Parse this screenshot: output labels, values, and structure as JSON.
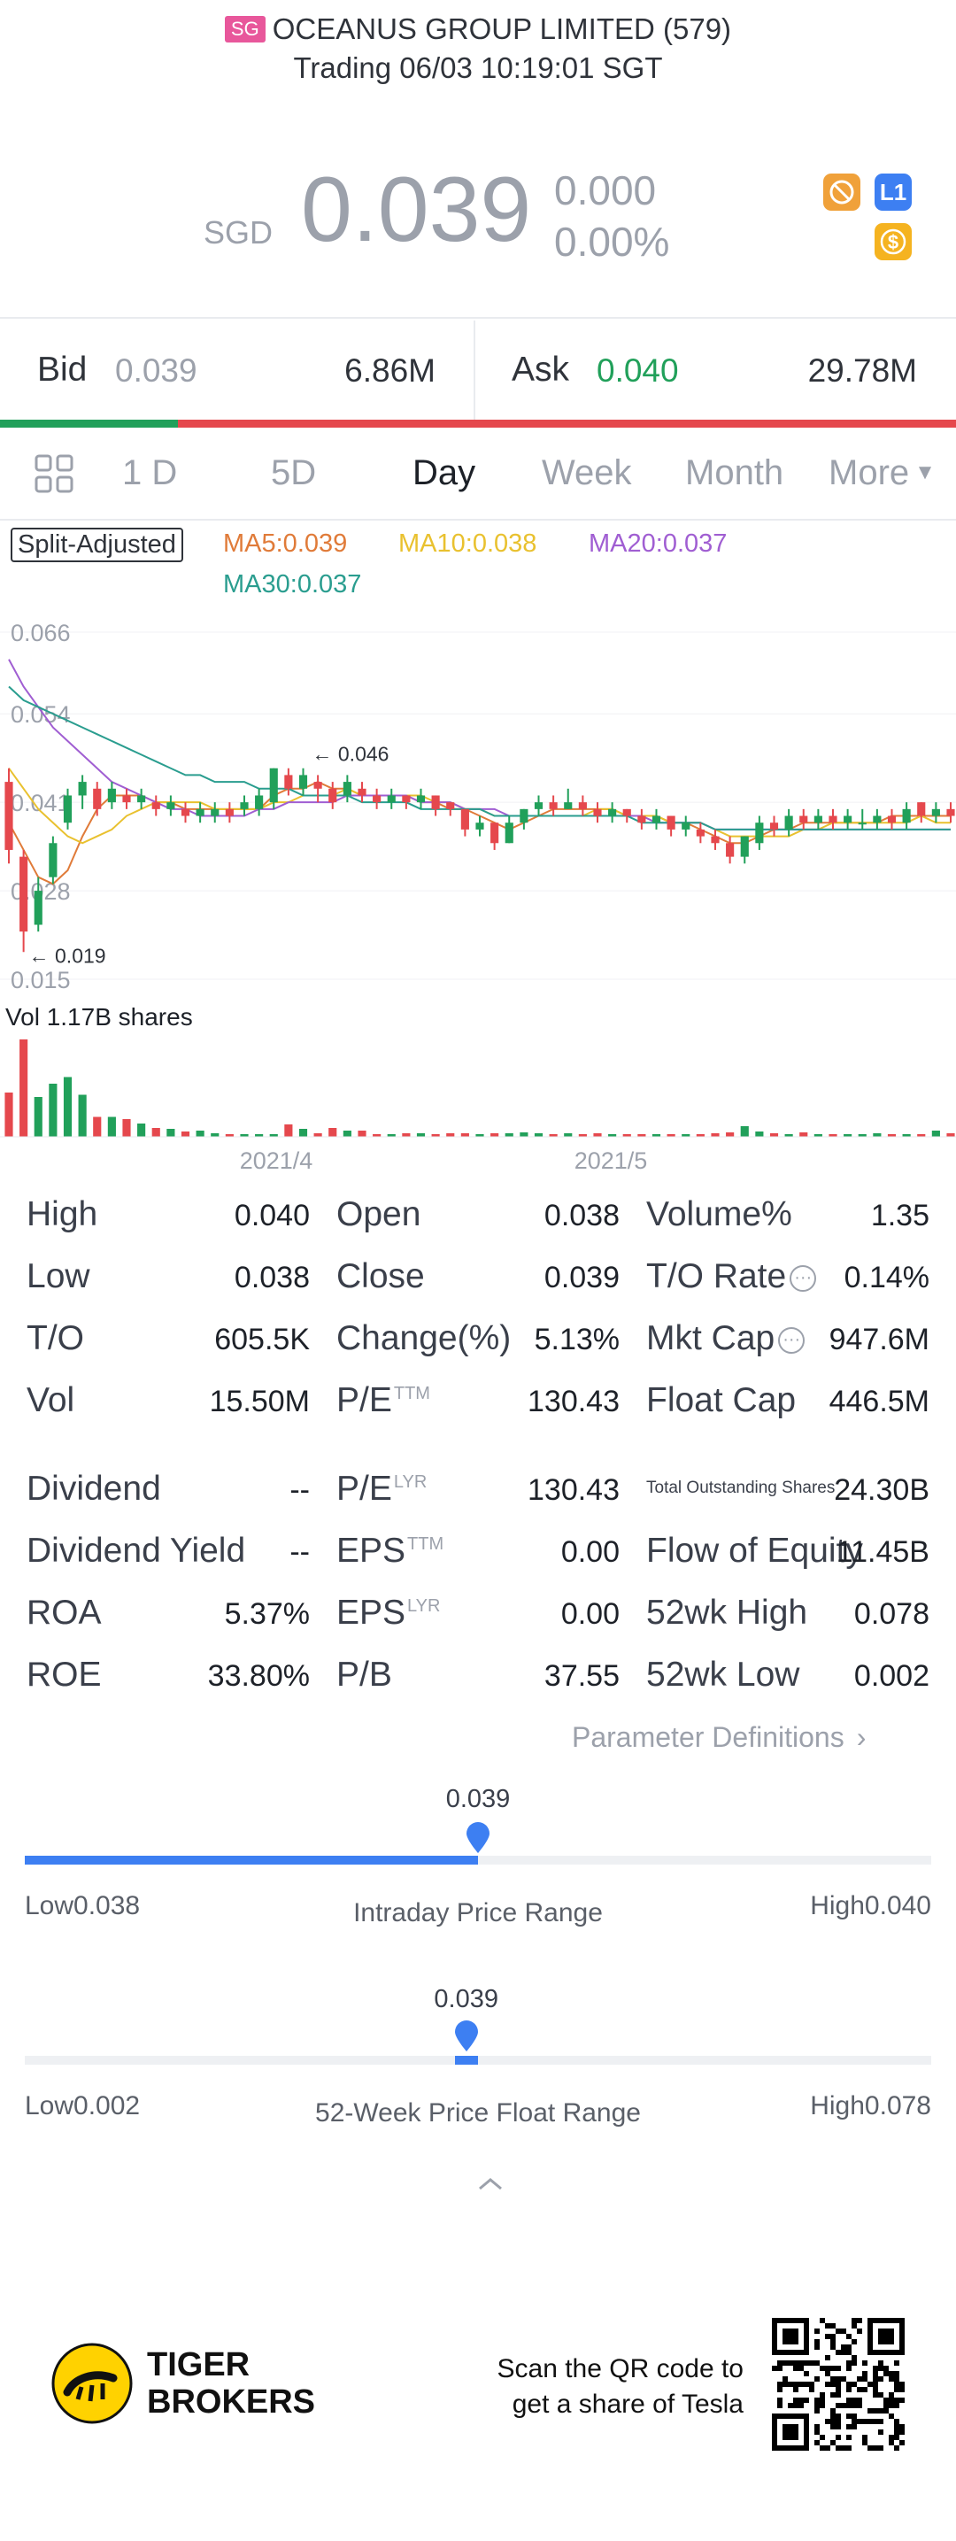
{
  "header": {
    "market_badge": "SG",
    "title": "OCEANUS GROUP LIMITED (579)",
    "status": "Trading 06/03 10:19:01 SGT"
  },
  "quote": {
    "currency": "SGD",
    "price": "0.039",
    "change": "0.000",
    "change_pct": "0.00%",
    "icons": [
      "no-shorting-icon",
      "level1-icon",
      "dollar-icon"
    ],
    "level_badge": "L1",
    "dollar_badge": "$"
  },
  "book": {
    "bid_label": "Bid",
    "bid_price": "0.039",
    "bid_size": "6.86M",
    "ask_label": "Ask",
    "ask_price": "0.040",
    "ask_size": "29.78M",
    "bid_share": 0.186
  },
  "tabs": {
    "items": [
      "1 D",
      "5D",
      "Day",
      "Week",
      "Month",
      "More"
    ],
    "active": "Day"
  },
  "indicators": {
    "split_label": "Split-Adjusted",
    "ma5": "MA5:0.039",
    "ma10": "MA10:0.038",
    "ma20": "MA20:0.037",
    "ma30": "MA30:0.037"
  },
  "colors": {
    "up": "#21a05a",
    "down": "#e5484d",
    "ma5": "#e07b39",
    "ma10": "#e9c12f",
    "ma20": "#a05ed2",
    "ma30": "#2a9d8f",
    "accent": "#3d7ff2",
    "brand": "#ffd200"
  },
  "chart_data": {
    "type": "candlestick",
    "y_ticks": [
      "0.066",
      "0.054",
      "0.041",
      "0.028",
      "0.015"
    ],
    "ylim": [
      0.015,
      0.066
    ],
    "x_ticks": [
      "2021/4",
      "2021/5"
    ],
    "annotations": {
      "high": "0.046",
      "low": "0.019"
    },
    "volume_label": "Vol",
    "volume_value": "1.17B shares",
    "candles": [
      {
        "o": 0.044,
        "c": 0.034,
        "h": 0.046,
        "l": 0.032
      },
      {
        "o": 0.033,
        "c": 0.022,
        "h": 0.034,
        "l": 0.019
      },
      {
        "o": 0.023,
        "c": 0.028,
        "h": 0.03,
        "l": 0.022
      },
      {
        "o": 0.03,
        "c": 0.035,
        "h": 0.036,
        "l": 0.029
      },
      {
        "o": 0.038,
        "c": 0.042,
        "h": 0.043,
        "l": 0.037
      },
      {
        "o": 0.042,
        "c": 0.044,
        "h": 0.045,
        "l": 0.04
      },
      {
        "o": 0.043,
        "c": 0.04,
        "h": 0.044,
        "l": 0.039
      },
      {
        "o": 0.041,
        "c": 0.043,
        "h": 0.044,
        "l": 0.04
      },
      {
        "o": 0.042,
        "c": 0.041,
        "h": 0.043,
        "l": 0.04
      },
      {
        "o": 0.041,
        "c": 0.042,
        "h": 0.043,
        "l": 0.04
      },
      {
        "o": 0.041,
        "c": 0.04,
        "h": 0.042,
        "l": 0.039
      },
      {
        "o": 0.04,
        "c": 0.041,
        "h": 0.042,
        "l": 0.039
      },
      {
        "o": 0.04,
        "c": 0.039,
        "h": 0.041,
        "l": 0.038
      },
      {
        "o": 0.039,
        "c": 0.04,
        "h": 0.041,
        "l": 0.038
      },
      {
        "o": 0.039,
        "c": 0.04,
        "h": 0.041,
        "l": 0.038
      },
      {
        "o": 0.04,
        "c": 0.039,
        "h": 0.041,
        "l": 0.038
      },
      {
        "o": 0.04,
        "c": 0.041,
        "h": 0.042,
        "l": 0.039
      },
      {
        "o": 0.04,
        "c": 0.042,
        "h": 0.043,
        "l": 0.039
      },
      {
        "o": 0.041,
        "c": 0.046,
        "h": 0.046,
        "l": 0.04
      },
      {
        "o": 0.045,
        "c": 0.043,
        "h": 0.046,
        "l": 0.042
      },
      {
        "o": 0.043,
        "c": 0.045,
        "h": 0.046,
        "l": 0.042
      },
      {
        "o": 0.044,
        "c": 0.043,
        "h": 0.045,
        "l": 0.041
      },
      {
        "o": 0.043,
        "c": 0.041,
        "h": 0.044,
        "l": 0.04
      },
      {
        "o": 0.042,
        "c": 0.044,
        "h": 0.045,
        "l": 0.041
      },
      {
        "o": 0.043,
        "c": 0.042,
        "h": 0.044,
        "l": 0.041
      },
      {
        "o": 0.042,
        "c": 0.041,
        "h": 0.043,
        "l": 0.04
      },
      {
        "o": 0.041,
        "c": 0.042,
        "h": 0.043,
        "l": 0.04
      },
      {
        "o": 0.042,
        "c": 0.041,
        "h": 0.042,
        "l": 0.04
      },
      {
        "o": 0.041,
        "c": 0.042,
        "h": 0.043,
        "l": 0.04
      },
      {
        "o": 0.042,
        "c": 0.04,
        "h": 0.042,
        "l": 0.039
      },
      {
        "o": 0.041,
        "c": 0.04,
        "h": 0.041,
        "l": 0.039
      },
      {
        "o": 0.04,
        "c": 0.037,
        "h": 0.04,
        "l": 0.036
      },
      {
        "o": 0.037,
        "c": 0.038,
        "h": 0.039,
        "l": 0.036
      },
      {
        "o": 0.038,
        "c": 0.035,
        "h": 0.038,
        "l": 0.034
      },
      {
        "o": 0.035,
        "c": 0.038,
        "h": 0.039,
        "l": 0.035
      },
      {
        "o": 0.038,
        "c": 0.04,
        "h": 0.04,
        "l": 0.037
      },
      {
        "o": 0.04,
        "c": 0.041,
        "h": 0.042,
        "l": 0.039
      },
      {
        "o": 0.041,
        "c": 0.04,
        "h": 0.042,
        "l": 0.039
      },
      {
        "o": 0.04,
        "c": 0.041,
        "h": 0.043,
        "l": 0.04
      },
      {
        "o": 0.041,
        "c": 0.04,
        "h": 0.042,
        "l": 0.039
      },
      {
        "o": 0.04,
        "c": 0.039,
        "h": 0.041,
        "l": 0.038
      },
      {
        "o": 0.039,
        "c": 0.04,
        "h": 0.041,
        "l": 0.038
      },
      {
        "o": 0.04,
        "c": 0.039,
        "h": 0.04,
        "l": 0.038
      },
      {
        "o": 0.039,
        "c": 0.038,
        "h": 0.04,
        "l": 0.037
      },
      {
        "o": 0.038,
        "c": 0.039,
        "h": 0.04,
        "l": 0.037
      },
      {
        "o": 0.039,
        "c": 0.037,
        "h": 0.039,
        "l": 0.036
      },
      {
        "o": 0.037,
        "c": 0.038,
        "h": 0.039,
        "l": 0.036
      },
      {
        "o": 0.037,
        "c": 0.036,
        "h": 0.038,
        "l": 0.035
      },
      {
        "o": 0.036,
        "c": 0.035,
        "h": 0.037,
        "l": 0.034
      },
      {
        "o": 0.035,
        "c": 0.033,
        "h": 0.036,
        "l": 0.032
      },
      {
        "o": 0.033,
        "c": 0.036,
        "h": 0.036,
        "l": 0.032
      },
      {
        "o": 0.035,
        "c": 0.038,
        "h": 0.039,
        "l": 0.034
      },
      {
        "o": 0.038,
        "c": 0.037,
        "h": 0.039,
        "l": 0.036
      },
      {
        "o": 0.037,
        "c": 0.039,
        "h": 0.04,
        "l": 0.036
      },
      {
        "o": 0.039,
        "c": 0.038,
        "h": 0.04,
        "l": 0.037
      },
      {
        "o": 0.038,
        "c": 0.039,
        "h": 0.04,
        "l": 0.037
      },
      {
        "o": 0.039,
        "c": 0.038,
        "h": 0.04,
        "l": 0.037
      },
      {
        "o": 0.038,
        "c": 0.039,
        "h": 0.04,
        "l": 0.037
      },
      {
        "o": 0.038,
        "c": 0.038,
        "h": 0.04,
        "l": 0.037
      },
      {
        "o": 0.038,
        "c": 0.039,
        "h": 0.04,
        "l": 0.037
      },
      {
        "o": 0.039,
        "c": 0.038,
        "h": 0.04,
        "l": 0.037
      },
      {
        "o": 0.038,
        "c": 0.04,
        "h": 0.041,
        "l": 0.037
      },
      {
        "o": 0.041,
        "c": 0.039,
        "h": 0.041,
        "l": 0.038
      },
      {
        "o": 0.039,
        "c": 0.04,
        "h": 0.041,
        "l": 0.038
      },
      {
        "o": 0.04,
        "c": 0.039,
        "h": 0.041,
        "l": 0.038
      }
    ],
    "volumes": [
      100,
      220,
      90,
      120,
      135,
      95,
      45,
      45,
      40,
      30,
      20,
      18,
      12,
      14,
      8,
      6,
      5,
      5,
      5,
      28,
      18,
      8,
      20,
      14,
      14,
      6,
      4,
      8,
      8,
      4,
      8,
      8,
      6,
      8,
      8,
      10,
      8,
      5,
      8,
      6,
      8,
      6,
      6,
      5,
      4,
      5,
      5,
      6,
      8,
      10,
      24,
      12,
      8,
      6,
      10,
      5,
      6,
      5,
      6,
      8,
      6,
      5,
      4,
      14,
      8
    ],
    "ma_series": {
      "ma5": [
        0.038,
        0.034,
        0.03,
        0.029,
        0.031,
        0.036,
        0.04,
        0.042,
        0.042,
        0.042,
        0.041,
        0.041,
        0.04,
        0.04,
        0.04,
        0.04,
        0.04,
        0.04,
        0.042,
        0.043,
        0.043,
        0.044,
        0.043,
        0.043,
        0.042,
        0.042,
        0.042,
        0.042,
        0.041,
        0.041,
        0.04,
        0.04,
        0.039,
        0.038,
        0.037,
        0.038,
        0.039,
        0.04,
        0.04,
        0.04,
        0.04,
        0.04,
        0.039,
        0.039,
        0.039,
        0.038,
        0.038,
        0.037,
        0.036,
        0.035,
        0.035,
        0.036,
        0.037,
        0.037,
        0.038,
        0.038,
        0.038,
        0.038,
        0.038,
        0.038,
        0.039,
        0.039,
        0.039,
        0.039,
        0.039
      ],
      "ma10": [
        0.046,
        0.043,
        0.04,
        0.038,
        0.036,
        0.035,
        0.036,
        0.037,
        0.039,
        0.04,
        0.041,
        0.041,
        0.041,
        0.041,
        0.04,
        0.04,
        0.04,
        0.04,
        0.041,
        0.041,
        0.042,
        0.042,
        0.042,
        0.043,
        0.042,
        0.042,
        0.042,
        0.042,
        0.042,
        0.041,
        0.041,
        0.04,
        0.04,
        0.039,
        0.039,
        0.039,
        0.039,
        0.039,
        0.039,
        0.039,
        0.04,
        0.04,
        0.039,
        0.039,
        0.039,
        0.038,
        0.038,
        0.038,
        0.037,
        0.036,
        0.036,
        0.036,
        0.036,
        0.036,
        0.037,
        0.037,
        0.038,
        0.038,
        0.038,
        0.038,
        0.038,
        0.038,
        0.039,
        0.038,
        0.038
      ],
      "ma20": [
        0.062,
        0.058,
        0.055,
        0.052,
        0.05,
        0.048,
        0.046,
        0.044,
        0.043,
        0.042,
        0.041,
        0.04,
        0.04,
        0.039,
        0.039,
        0.039,
        0.039,
        0.04,
        0.04,
        0.041,
        0.041,
        0.041,
        0.041,
        0.042,
        0.042,
        0.042,
        0.042,
        0.042,
        0.041,
        0.041,
        0.041,
        0.04,
        0.04,
        0.04,
        0.039,
        0.039,
        0.039,
        0.039,
        0.039,
        0.039,
        0.039,
        0.039,
        0.039,
        0.039,
        0.038,
        0.038,
        0.038,
        0.038,
        0.037,
        0.037,
        0.037,
        0.037,
        0.037,
        0.037,
        0.037,
        0.037,
        0.037,
        0.037,
        0.037,
        0.037,
        0.037,
        0.037,
        0.037,
        0.037,
        0.037
      ],
      "ma30": [
        0.058,
        0.056,
        0.055,
        0.054,
        0.053,
        0.052,
        0.051,
        0.05,
        0.049,
        0.048,
        0.047,
        0.046,
        0.045,
        0.045,
        0.044,
        0.044,
        0.044,
        0.043,
        0.043,
        0.043,
        0.042,
        0.042,
        0.042,
        0.042,
        0.041,
        0.041,
        0.041,
        0.041,
        0.04,
        0.04,
        0.04,
        0.04,
        0.04,
        0.039,
        0.039,
        0.039,
        0.039,
        0.039,
        0.039,
        0.039,
        0.039,
        0.039,
        0.039,
        0.038,
        0.038,
        0.038,
        0.038,
        0.038,
        0.037,
        0.037,
        0.037,
        0.037,
        0.037,
        0.037,
        0.037,
        0.037,
        0.037,
        0.037,
        0.037,
        0.037,
        0.037,
        0.037,
        0.037,
        0.037,
        0.037
      ]
    }
  },
  "stats": {
    "rows": [
      [
        [
          "High",
          "0.040"
        ],
        [
          "Open",
          "0.038"
        ],
        [
          "Volume%",
          "1.35"
        ]
      ],
      [
        [
          "Low",
          "0.038"
        ],
        [
          "Close",
          "0.039"
        ],
        [
          "T/O Rate",
          "0.14%"
        ]
      ],
      [
        [
          "T/O",
          "605.5K"
        ],
        [
          "Change(%)",
          "5.13%"
        ],
        [
          "Mkt Cap",
          "947.6M"
        ]
      ],
      [
        [
          "Vol",
          "15.50M"
        ],
        [
          "P/E",
          "130.43"
        ],
        [
          "Float Cap",
          "446.5M"
        ]
      ],
      [
        [
          "Dividend",
          "--"
        ],
        [
          "P/E",
          "130.43"
        ],
        [
          "Total Outstanding Shares",
          "24.30B"
        ]
      ],
      [
        [
          "Dividend Yield",
          "--"
        ],
        [
          "EPS",
          "0.00"
        ],
        [
          "Flow of Equity",
          "11.45B"
        ]
      ],
      [
        [
          "ROA",
          "5.37%"
        ],
        [
          "EPS",
          "0.00"
        ],
        [
          "52wk High",
          "0.078"
        ]
      ],
      [
        [
          "ROE",
          "33.80%"
        ],
        [
          "P/B",
          "37.55"
        ],
        [
          "52wk Low",
          "0.002"
        ]
      ]
    ],
    "sup_ttm": "TTM",
    "sup_lyr": "LYR",
    "param_link": "Parameter Definitions"
  },
  "ranges": {
    "intraday": {
      "value": "0.039",
      "low": "Low0.038",
      "high": "High0.040",
      "title": "Intraday Price Range",
      "position": 0.5
    },
    "week52": {
      "value": "0.039",
      "low": "Low0.002",
      "high": "High0.078",
      "title": "52-Week Price Float Range",
      "position": 0.487
    }
  },
  "footer": {
    "brand_line1": "TIGER",
    "brand_line2": "BROKERS",
    "qr_text1": "Scan the QR code to",
    "qr_text2": "get a share of Tesla"
  }
}
